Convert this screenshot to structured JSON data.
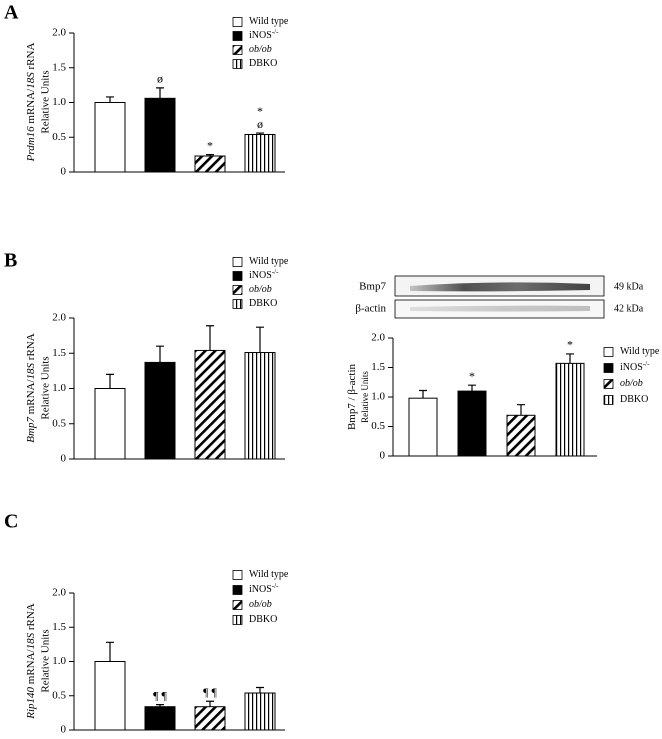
{
  "panels": [
    "A",
    "B",
    "C"
  ],
  "blot": [
    {
      "label": "Bmp7",
      "size": "49 kDa"
    },
    {
      "label": "β-actin",
      "size": "42 kDa"
    }
  ],
  "chart_data": [
    {
      "type": "bar",
      "ylabel": [
        {
          "text": "Prdm16",
          "italic": true
        },
        {
          "text": " mRNA/",
          "italic": false
        },
        {
          "text": "18S",
          "italic": true
        },
        {
          "text": " rRNA",
          "italic": false
        }
      ],
      "ylabel2": "Relative Units",
      "categories": [
        "Wild type",
        "iNOS",
        "ob/ob",
        "DBKO"
      ],
      "category_superscripts": [
        null,
        "-/-",
        null,
        null
      ],
      "italic_categories": [
        false,
        false,
        true,
        false
      ],
      "fills": [
        "white",
        "black",
        "diagonal",
        "vertical"
      ],
      "values": [
        1.0,
        1.06,
        0.23,
        0.54
      ],
      "errors": [
        0.08,
        0.15,
        0.02,
        0.02
      ],
      "annotations": [
        [],
        [
          "ø"
        ],
        [
          "*"
        ],
        [
          "*",
          "ø"
        ]
      ],
      "ylim": [
        0,
        2
      ],
      "yticks": [
        0,
        0.5,
        {
          "value": 1,
          "label": "1.0"
        },
        1.5,
        {
          "value": 2,
          "label": "2.0"
        }
      ]
    },
    {
      "type": "bar",
      "ylabel": [
        {
          "text": "Bmp7",
          "italic": true
        },
        {
          "text": " mRNA/",
          "italic": false
        },
        {
          "text": "18S",
          "italic": true
        },
        {
          "text": " rRNA",
          "italic": false
        }
      ],
      "ylabel2": "Relative Units",
      "categories": [
        "Wild type",
        "iNOS",
        "ob/ob",
        "DBKO"
      ],
      "category_superscripts": [
        null,
        "-/-",
        null,
        null
      ],
      "italic_categories": [
        false,
        false,
        true,
        false
      ],
      "fills": [
        "white",
        "black",
        "diagonal",
        "vertical"
      ],
      "values": [
        1.0,
        1.37,
        1.54,
        1.51
      ],
      "errors": [
        0.2,
        0.23,
        0.35,
        0.36
      ],
      "annotations": [
        [],
        [],
        [],
        []
      ],
      "ylim": [
        0,
        2
      ],
      "yticks": [
        0,
        0.5,
        {
          "value": 1,
          "label": "1.0"
        },
        1.5,
        {
          "value": 2,
          "label": "2.0"
        }
      ]
    },
    {
      "type": "bar",
      "ylabel": [
        {
          "text": "Bmp7 / β-actin",
          "italic": false
        }
      ],
      "ylabel2": "Relative Units",
      "categories": [
        "Wild type",
        "iNOS",
        "ob/ob",
        "DBKO"
      ],
      "category_superscripts": [
        null,
        "-/-",
        null,
        null
      ],
      "italic_categories": [
        false,
        false,
        true,
        false
      ],
      "fills": [
        "white",
        "black",
        "diagonal",
        "vertical"
      ],
      "values": [
        0.98,
        1.1,
        0.69,
        1.57
      ],
      "errors": [
        0.13,
        0.1,
        0.18,
        0.16
      ],
      "annotations": [
        [],
        [
          "*"
        ],
        [],
        [
          "*"
        ]
      ],
      "ylim": [
        0,
        2
      ],
      "yticks": [
        0,
        0.5,
        {
          "value": 1,
          "label": "1.0"
        },
        1.5,
        {
          "value": 2,
          "label": "2.0"
        }
      ]
    },
    {
      "type": "bar",
      "ylabel": [
        {
          "text": "Rip140",
          "italic": true
        },
        {
          "text": " mRNA/",
          "italic": false
        },
        {
          "text": "18S",
          "italic": true
        },
        {
          "text": " rRNA",
          "italic": false
        }
      ],
      "ylabel2": "Relative Units",
      "categories": [
        "Wild type",
        "iNOS",
        "ob/ob",
        "DBKO"
      ],
      "category_superscripts": [
        null,
        "-/-",
        null,
        null
      ],
      "italic_categories": [
        false,
        false,
        true,
        false
      ],
      "fills": [
        "white",
        "black",
        "diagonal",
        "vertical"
      ],
      "values": [
        1.0,
        0.34,
        0.34,
        0.54
      ],
      "errors": [
        0.28,
        0.03,
        0.08,
        0.08
      ],
      "annotations": [
        [],
        [
          "¶ ¶"
        ],
        [
          "¶ ¶"
        ],
        []
      ],
      "ylim": [
        0,
        2
      ],
      "yticks": [
        0,
        0.5,
        {
          "value": 1,
          "label": "1.0"
        },
        1.5,
        {
          "value": 2,
          "label": "2.0"
        }
      ]
    }
  ]
}
